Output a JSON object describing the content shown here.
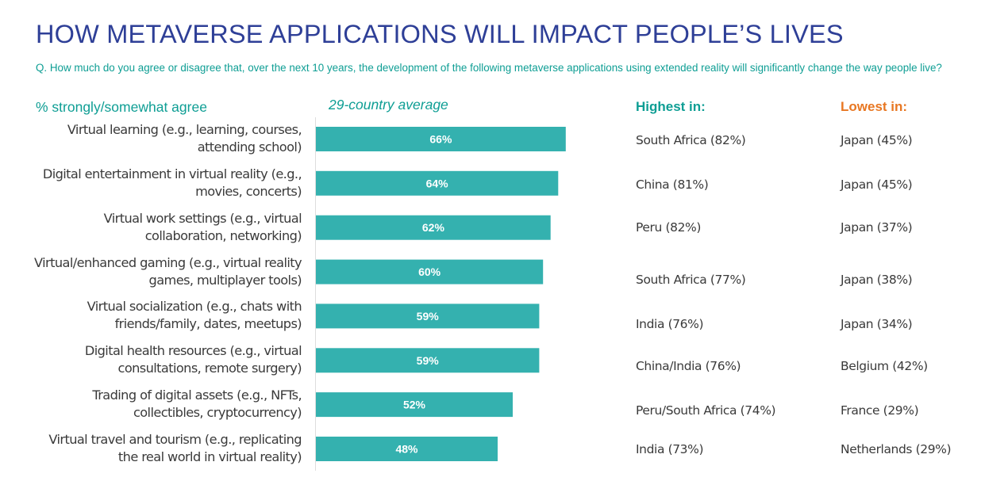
{
  "title": "HOW METAVERSE APPLICATIONS WILL IMPACT PEOPLE’S LIVES",
  "question": "Q. How much do you agree or disagree that, over the next 10 years, the development of the following metaverse applications using extended reality will significantly change the way people live?",
  "subheader_left": "% strongly/somewhat agree",
  "subheader_avg": "29-country average",
  "header_highest": "Highest in:",
  "header_lowest": "Lowest in:",
  "colors": {
    "title": "#2E3F97",
    "teal_text": "#0E9E94",
    "bar": "#34B1AF",
    "lowest_header": "#E87722",
    "axis": "#dddddd"
  },
  "chart_data": {
    "type": "bar",
    "orientation": "horizontal",
    "title": "HOW METAVERSE APPLICATIONS WILL IMPACT PEOPLE’S LIVES",
    "xlabel": "29-country average",
    "ylabel": "% strongly/somewhat agree",
    "xlim": [
      0,
      100
    ],
    "grid": false,
    "categories": [
      "Virtual learning (e.g., learning, courses, attending school)",
      "Digital entertainment in virtual reality (e.g., movies, concerts)",
      "Virtual work settings (e.g., virtual collaboration, networking)",
      "Virtual/enhanced gaming (e.g., virtual reality games, multiplayer tools)",
      "Virtual socialization (e.g., chats with friends/family, dates, meetups)",
      "Digital health resources (e.g., virtual consultations, remote surgery)",
      "Trading of digital assets (e.g., NFTs, collectibles, cryptocurrency)",
      "Virtual travel and tourism (e.g., replicating the real world in virtual reality)"
    ],
    "category_lines": [
      [
        "Virtual learning (e.g., learning, courses,",
        "attending school)"
      ],
      [
        "Digital entertainment in virtual reality (e.g.,",
        "movies, concerts)"
      ],
      [
        "Virtual work settings (e.g., virtual",
        "collaboration, networking)"
      ],
      [
        "Virtual/enhanced gaming (e.g., virtual reality",
        "games, multiplayer tools)"
      ],
      [
        "Virtual socialization (e.g., chats with",
        "friends/family, dates, meetups)"
      ],
      [
        "Digital health resources (e.g., virtual",
        "consultations, remote surgery)"
      ],
      [
        "Trading of digital assets (e.g., NFTs,",
        "collectibles, cryptocurrency)"
      ],
      [
        "Virtual travel and tourism (e.g., replicating",
        "the real world in virtual reality)"
      ]
    ],
    "values": [
      66,
      64,
      62,
      60,
      59,
      59,
      52,
      48
    ],
    "data_labels": [
      "66%",
      "64%",
      "62%",
      "60%",
      "59%",
      "59%",
      "52%",
      "48%"
    ],
    "highest_in": [
      "South Africa (82%)",
      "China (81%)",
      "Peru (82%)",
      "South Africa (77%)",
      "India (76%)",
      "China/India (76%)",
      "Peru/South Africa (74%)",
      "India (73%)"
    ],
    "lowest_in": [
      "Japan (45%)",
      "Japan (45%)",
      "Japan (37%)",
      "Japan (38%)",
      "Japan (34%)",
      "Belgium (42%)",
      "France (29%)",
      "Netherlands (29%)"
    ]
  }
}
